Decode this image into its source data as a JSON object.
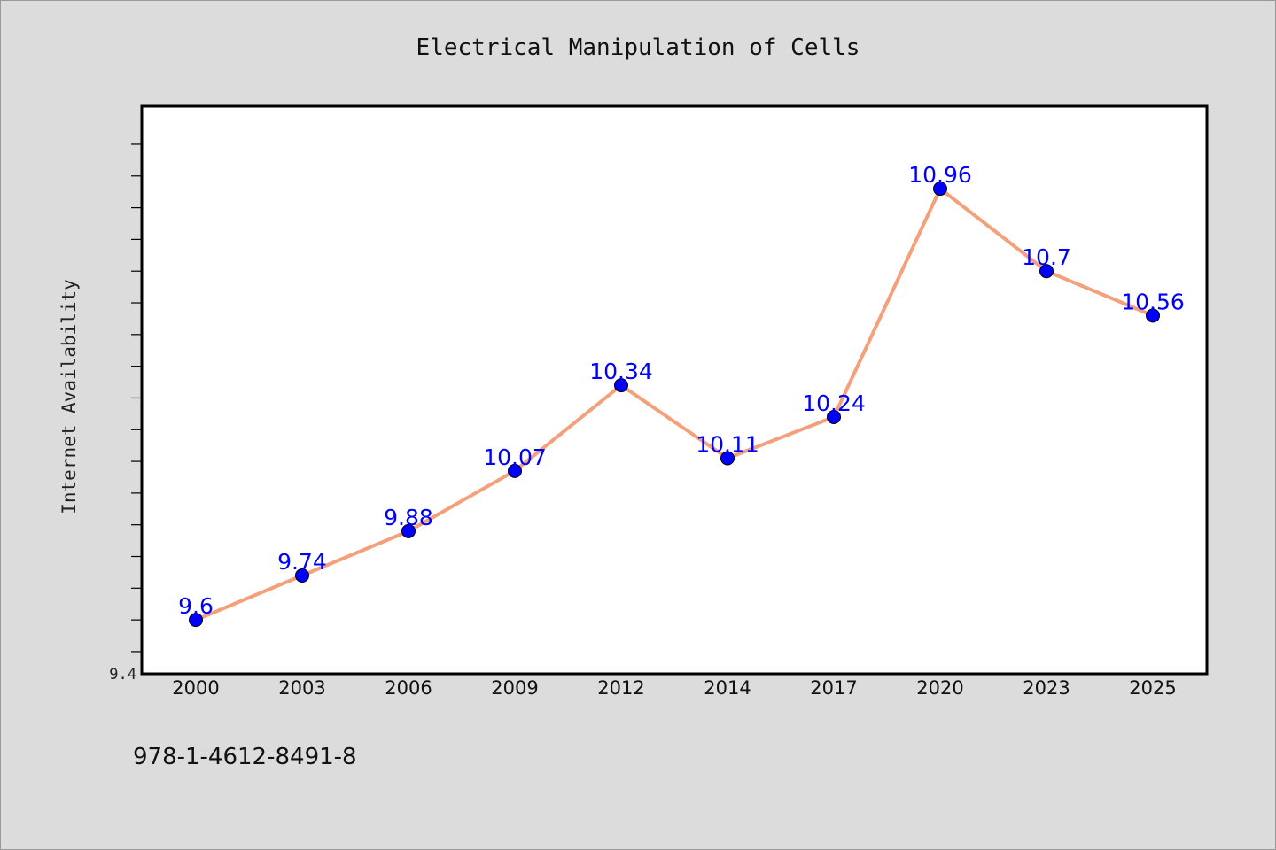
{
  "chart_data": {
    "type": "line",
    "title": "Electrical Manipulation of Cells",
    "xlabel": "",
    "ylabel": "Internet Availability",
    "categories": [
      "2000",
      "2003",
      "2006",
      "2009",
      "2012",
      "2014",
      "2017",
      "2020",
      "2023",
      "2025"
    ],
    "series": [
      {
        "values": [
          9.6,
          9.74,
          9.88,
          10.07,
          10.34,
          10.11,
          10.24,
          10.96,
          10.7,
          10.56
        ],
        "line_color": "#f4a07a",
        "marker_color": "#0000ff",
        "label_color": "#0000ff"
      }
    ],
    "data_labels": [
      "9.6",
      "9.74",
      "9.88",
      "10.07",
      "10.34",
      "10.11",
      "10.24",
      "10.96",
      "10.7",
      "10.56"
    ],
    "y_tick_labels": [
      "9.4"
    ],
    "ylim": [
      9.43,
      11.22
    ],
    "grid": false,
    "legend": "none"
  },
  "footer": {
    "code": "978-1-4612-8491-8"
  },
  "colors": {
    "background": "#dcdcdc",
    "plot_background": "#ffffff",
    "axis": "#000000"
  }
}
